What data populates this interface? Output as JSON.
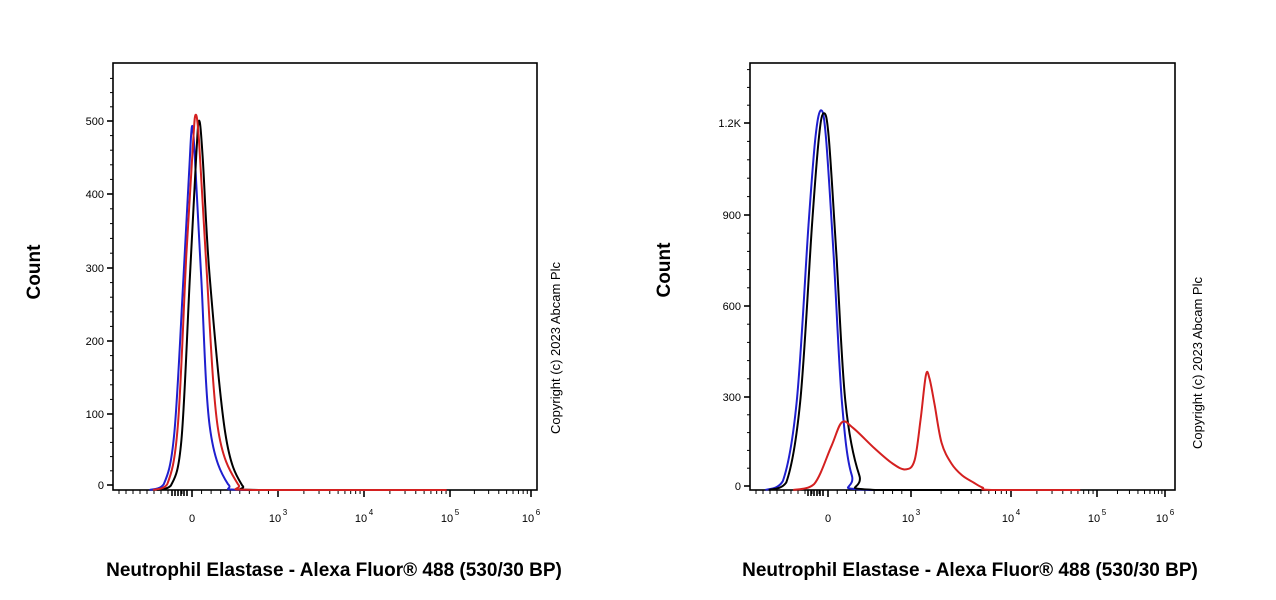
{
  "chart_data": [
    {
      "type": "line",
      "xlabel": "Neutrophil Elastase - Alexa Fluor® 488 (530/30 BP)",
      "ylabel": "Count",
      "annotation": "Copyright (c) 2023 Abcam Plc",
      "x_scale": "biexponential",
      "y_ticks": [
        "0",
        "100",
        "200",
        "300",
        "400",
        "500"
      ],
      "ylim": [
        0,
        580
      ],
      "x_ticks": [
        {
          "base": "0",
          "exp": ""
        },
        {
          "base": "10",
          "exp": "3"
        },
        {
          "base": "10",
          "exp": "4"
        },
        {
          "base": "10",
          "exp": "5"
        },
        {
          "base": "10",
          "exp": "6"
        }
      ],
      "series": [
        {
          "color": "#1f1fcf",
          "points": [
            [
              -600,
              0
            ],
            [
              -400,
              8
            ],
            [
              -250,
              80
            ],
            [
              -120,
              300
            ],
            [
              -40,
              450
            ],
            [
              0,
              512
            ],
            [
              40,
              470
            ],
            [
              130,
              300
            ],
            [
              250,
              90
            ],
            [
              400,
              8
            ],
            [
              600,
              0
            ],
            [
              100000,
              0
            ]
          ]
        },
        {
          "color": "#000000",
          "points": [
            [
              -500,
              0
            ],
            [
              -300,
              6
            ],
            [
              -150,
              70
            ],
            [
              -30,
              300
            ],
            [
              60,
              470
            ],
            [
              100,
              520
            ],
            [
              150,
              470
            ],
            [
              250,
              300
            ],
            [
              380,
              80
            ],
            [
              520,
              6
            ],
            [
              700,
              0
            ],
            [
              100000,
              0
            ]
          ]
        },
        {
          "color": "#d42020",
          "points": [
            [
              -550,
              0
            ],
            [
              -350,
              8
            ],
            [
              -200,
              90
            ],
            [
              -80,
              330
            ],
            [
              10,
              480
            ],
            [
              50,
              528
            ],
            [
              100,
              490
            ],
            [
              200,
              320
            ],
            [
              330,
              90
            ],
            [
              480,
              8
            ],
            [
              650,
              0
            ],
            [
              100000,
              0
            ]
          ]
        }
      ]
    },
    {
      "type": "line",
      "xlabel": "Neutrophil Elastase - Alexa Fluor® 488 (530/30 BP)",
      "ylabel": "Count",
      "annotation": "Copyright (c) 2023 Abcam Plc",
      "x_scale": "biexponential",
      "y_ticks": [
        "0",
        "300",
        "600",
        "900",
        "1.2K"
      ],
      "ylim": [
        0,
        1400
      ],
      "x_ticks": [
        {
          "base": "0",
          "exp": ""
        },
        {
          "base": "10",
          "exp": "3"
        },
        {
          "base": "10",
          "exp": "4"
        },
        {
          "base": "10",
          "exp": "5"
        },
        {
          "base": "10",
          "exp": "6"
        }
      ],
      "series": [
        {
          "color": "#1f1fcf",
          "points": [
            [
              -900,
              0
            ],
            [
              -650,
              30
            ],
            [
              -450,
              300
            ],
            [
              -280,
              900
            ],
            [
              -180,
              1200
            ],
            [
              -100,
              1290
            ],
            [
              -30,
              1200
            ],
            [
              80,
              800
            ],
            [
              200,
              300
            ],
            [
              320,
              50
            ],
            [
              450,
              0
            ],
            [
              100000,
              0
            ]
          ]
        },
        {
          "color": "#000000",
          "points": [
            [
              -850,
              0
            ],
            [
              -600,
              25
            ],
            [
              -400,
              300
            ],
            [
              -230,
              900
            ],
            [
              -130,
              1200
            ],
            [
              -60,
              1280
            ],
            [
              10,
              1200
            ],
            [
              120,
              800
            ],
            [
              250,
              300
            ],
            [
              370,
              50
            ],
            [
              500,
              0
            ],
            [
              100000,
              0
            ]
          ]
        },
        {
          "color": "#d42020",
          "points": [
            [
              -500,
              0
            ],
            [
              -200,
              20
            ],
            [
              50,
              150
            ],
            [
              200,
              230
            ],
            [
              330,
              210
            ],
            [
              500,
              140
            ],
            [
              700,
              90
            ],
            [
              900,
              70
            ],
            [
              1100,
              100
            ],
            [
              1300,
              240
            ],
            [
              1500,
              390
            ],
            [
              1650,
              380
            ],
            [
              1900,
              290
            ],
            [
              2300,
              160
            ],
            [
              3000,
              90
            ],
            [
              4000,
              50
            ],
            [
              5500,
              25
            ],
            [
              7000,
              8
            ],
            [
              9000,
              0
            ],
            [
              100000,
              0
            ]
          ]
        }
      ]
    }
  ]
}
